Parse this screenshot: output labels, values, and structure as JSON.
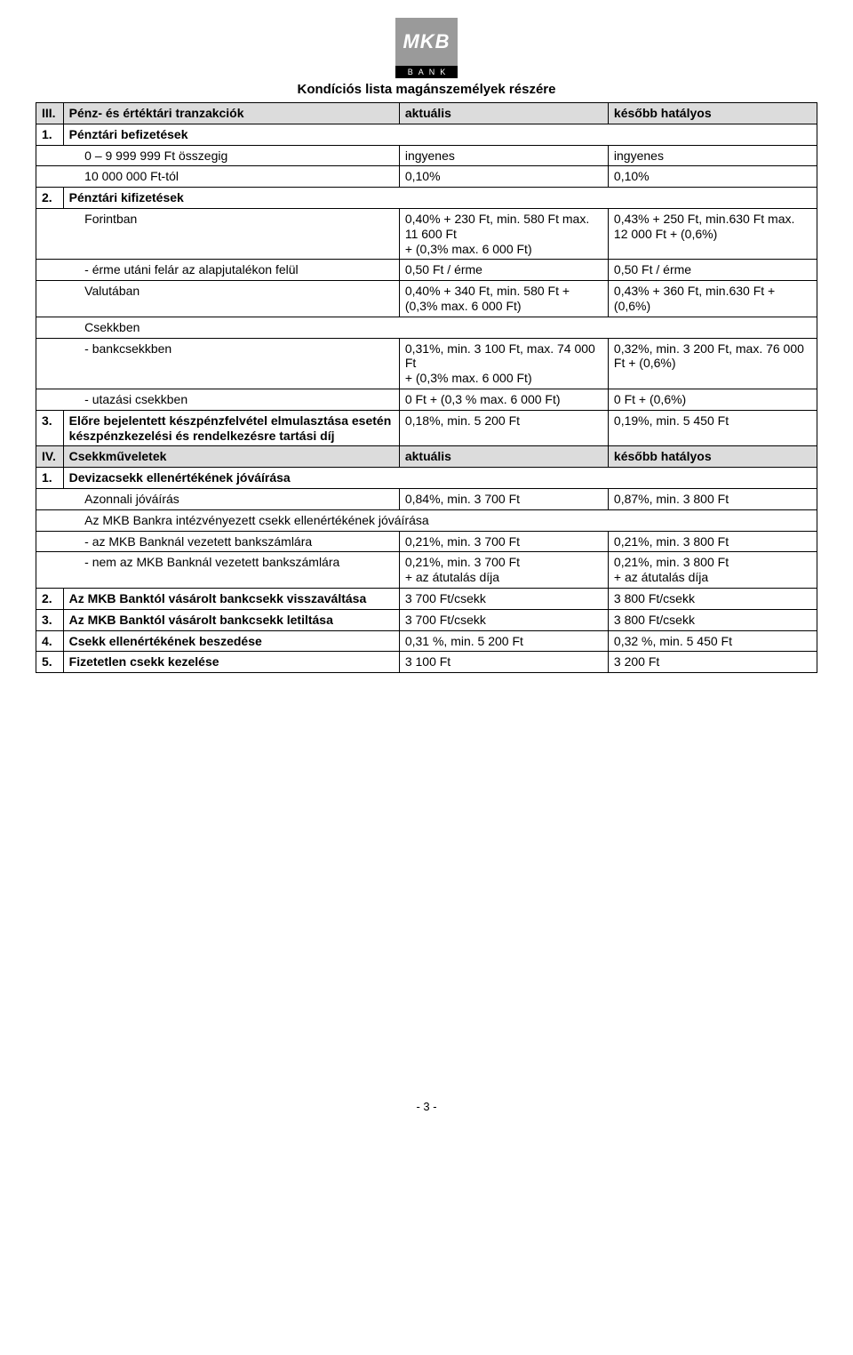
{
  "logo": {
    "text": "MKB",
    "bar": "BANK"
  },
  "title": "Kondíciós lista magánszemélyek részére",
  "col_headers": {
    "current": "aktuális",
    "later": "később hatályos"
  },
  "section3": {
    "num": "III.",
    "title": "Pénz- és értéktári tranzakciók",
    "items": {
      "1": {
        "num": "1.",
        "title": "Pénztári befizetések",
        "a": {
          "desc": "0 – 9 999 999 Ft összegig",
          "curr": "ingyenes",
          "later": "ingyenes"
        },
        "b": {
          "desc": "10 000 000 Ft-tól",
          "curr": "0,10%",
          "later": "0,10%"
        }
      },
      "2": {
        "num": "2.",
        "title": "Pénztári kifizetések",
        "a": {
          "desc": "Forintban",
          "curr": "0,40% + 230 Ft, min. 580 Ft max. 11 600 Ft\n+ (0,3% max. 6 000 Ft)",
          "later": "0,43% + 250 Ft, min.630 Ft max. 12 000 Ft + (0,6%)"
        },
        "b": {
          "desc": "- érme utáni felár az alapjutalékon felül",
          "curr": "0,50 Ft / érme",
          "later": "0,50 Ft / érme"
        },
        "c": {
          "desc": "Valutában",
          "curr": "0,40% + 340 Ft, min. 580 Ft + (0,3% max. 6 000 Ft)",
          "later": "0,43% + 360 Ft, min.630 Ft + (0,6%)"
        },
        "d": {
          "desc": "Csekkben"
        },
        "e": {
          "desc": "- bankcsekkben",
          "curr": "0,31%, min. 3 100 Ft, max. 74 000 Ft\n+ (0,3% max. 6 000 Ft)",
          "later": "0,32%, min. 3 200 Ft, max. 76 000 Ft + (0,6%)"
        },
        "f": {
          "desc": "- utazási csekkben",
          "curr": "0 Ft + (0,3 % max. 6 000 Ft)",
          "later": "0 Ft + (0,6%)"
        }
      },
      "3": {
        "num": "3.",
        "title": "Előre bejelentett készpénzfelvétel elmulasztása esetén készpénzkezelési és rendelkezésre tartási díj",
        "curr": "0,18%, min. 5 200 Ft",
        "later": "0,19%, min. 5 450 Ft"
      }
    }
  },
  "section4": {
    "num": "IV.",
    "title": "Csekkműveletek",
    "items": {
      "1": {
        "num": "1.",
        "title": "Devizacsekk ellenértékének jóváírása",
        "a": {
          "desc": "Azonnali jóváírás",
          "curr": "0,84%, min. 3 700 Ft",
          "later": "0,87%, min. 3 800 Ft"
        },
        "b": {
          "desc": "Az MKB Bankra intézvényezett csekk ellenértékének jóváírása"
        },
        "c": {
          "desc": "- az MKB Banknál vezetett bankszámlára",
          "curr": "0,21%, min. 3 700 Ft",
          "later": "0,21%, min. 3 800 Ft"
        },
        "d": {
          "desc": "- nem az MKB Banknál vezetett bankszámlára",
          "curr": "0,21%, min. 3 700 Ft\n+ az átutalás díja",
          "later": "0,21%, min. 3 800 Ft\n+ az átutalás díja"
        }
      },
      "2": {
        "num": "2.",
        "title": "Az MKB Banktól vásárolt bankcsekk visszaváltása",
        "curr": "3 700 Ft/csekk",
        "later": "3 800 Ft/csekk"
      },
      "3": {
        "num": "3.",
        "title": "Az MKB Banktól vásárolt bankcsekk letiltása",
        "curr": "3 700 Ft/csekk",
        "later": "3 800 Ft/csekk"
      },
      "4": {
        "num": "4.",
        "title": "Csekk ellenértékének beszedése",
        "curr": "0,31 %, min. 5 200 Ft",
        "later": "0,32 %, min. 5 450 Ft"
      },
      "5": {
        "num": "5.",
        "title": "Fizetetlen csekk kezelése",
        "curr": "3 100 Ft",
        "later": "3 200 Ft"
      }
    }
  },
  "footer": "- 3 -"
}
